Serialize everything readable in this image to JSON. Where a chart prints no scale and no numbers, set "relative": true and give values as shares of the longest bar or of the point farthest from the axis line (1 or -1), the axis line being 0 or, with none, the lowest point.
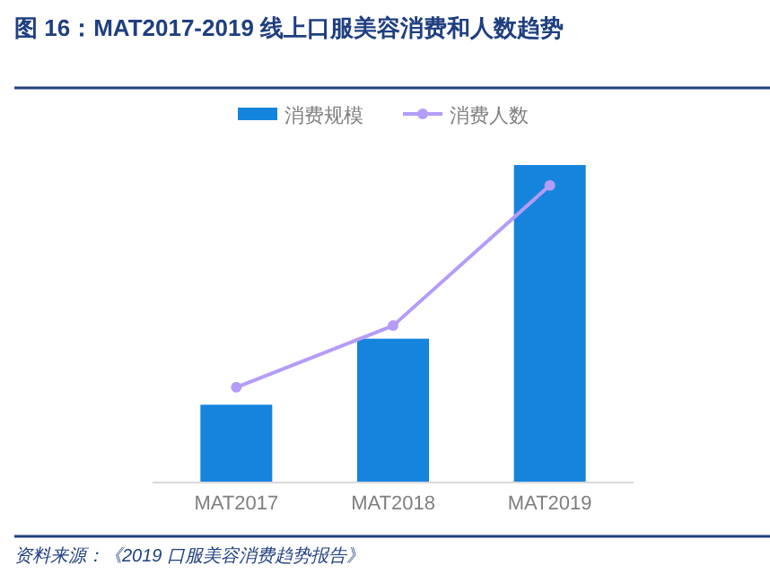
{
  "chart_data": {
    "type": "bar",
    "title": "图 16：MAT2017-2019 线上口服美容消费和人数趋势",
    "categories": [
      "MAT2017",
      "MAT2018",
      "MAT2019"
    ],
    "relative": true,
    "legend": "top",
    "annotations": [
      "资料来源：《2019 口服美容消费趋势报告》"
    ],
    "series": [
      {
        "name": "消费规模",
        "color": "#1584dc",
        "values": [
          0.245,
          0.453,
          1
        ]
      },
      {
        "name": "消费人数",
        "type": "line",
        "color": "#b49cf8",
        "marker": "circle",
        "values": [
          0.3,
          0.494,
          0.936
        ]
      }
    ]
  }
}
